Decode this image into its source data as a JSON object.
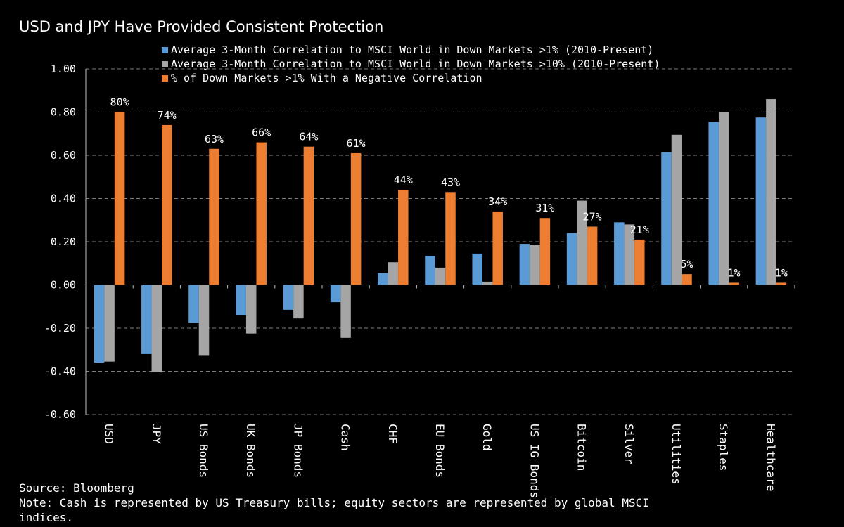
{
  "title": "USD and JPY Have Provided Consistent Protection",
  "footer": {
    "source": "Source: Bloomberg",
    "note": "Note: Cash is represented by US Treasury bills; equity sectors are represented by global MSCI indices."
  },
  "colors": {
    "background": "#000000",
    "series1": "#5b9bd5",
    "series2": "#a5a5a5",
    "series3": "#ed7d31",
    "grid": "#7f7f7f"
  },
  "chart_data": {
    "type": "bar",
    "title": "USD and JPY Have Provided Consistent Protection",
    "categories": [
      "USD",
      "JPY",
      "US Bonds",
      "UK Bonds",
      "JP Bonds",
      "Cash",
      "CHF",
      "EU Bonds",
      "Gold",
      "US IG Bonds",
      "Bitcoin",
      "Silver",
      "Utilities",
      "Staples",
      "Healthcare"
    ],
    "series": [
      {
        "name": "Average 3-Month Correlation to MSCI World in Down Markets >1% (2010-Present)",
        "color": "#5b9bd5",
        "values": [
          -0.36,
          -0.32,
          -0.175,
          -0.14,
          -0.115,
          -0.08,
          0.055,
          0.135,
          0.145,
          0.19,
          0.24,
          0.29,
          0.615,
          0.755,
          0.775
        ]
      },
      {
        "name": "Average 3-Month Correlation to MSCI World in Down Markets >10% (2010-Present)",
        "color": "#a5a5a5",
        "values": [
          -0.355,
          -0.405,
          -0.325,
          -0.225,
          -0.155,
          -0.245,
          0.105,
          0.08,
          0.015,
          0.185,
          0.39,
          0.28,
          0.695,
          0.8,
          0.86
        ]
      },
      {
        "name": "% of Down Markets >1% With a Negative Correlation",
        "color": "#ed7d31",
        "values": [
          0.8,
          0.74,
          0.63,
          0.66,
          0.64,
          0.61,
          0.44,
          0.43,
          0.34,
          0.31,
          0.27,
          0.21,
          0.05,
          0.01,
          0.01
        ],
        "labels": [
          "80%",
          "74%",
          "63%",
          "66%",
          "64%",
          "61%",
          "44%",
          "43%",
          "34%",
          "31%",
          "27%",
          "21%",
          "5%",
          "1%",
          "1%"
        ]
      }
    ],
    "ylim": [
      -0.6,
      1.0
    ],
    "yticks": [
      "1.00",
      "0.80",
      "0.60",
      "0.40",
      "0.20",
      "0.00",
      "-0.20",
      "-0.40",
      "-0.60"
    ],
    "grid": true,
    "legend_position": "top"
  }
}
